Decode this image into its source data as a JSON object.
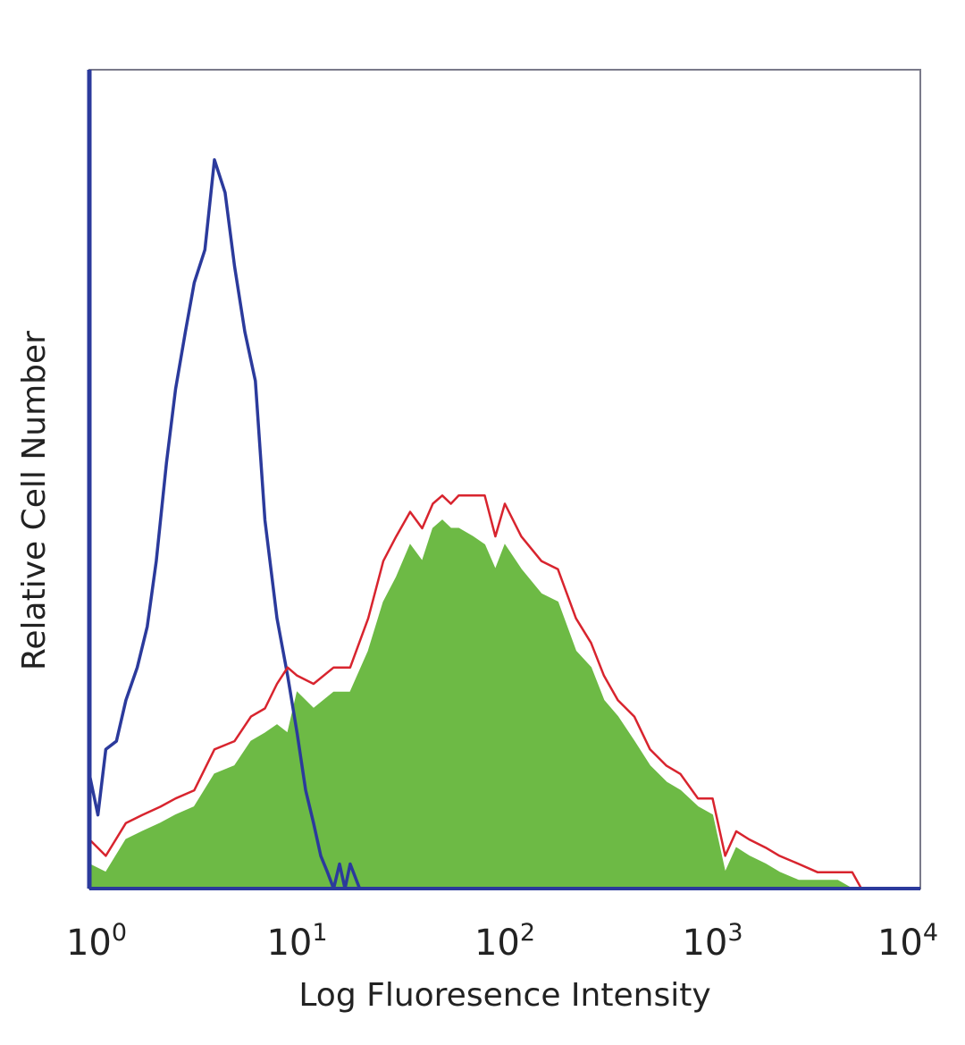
{
  "chart_data": {
    "type": "area",
    "title": "",
    "xlabel": "Log Fluoresence Intensity",
    "ylabel": "Relative Cell Number",
    "x_scale": "log",
    "xlim": [
      1,
      10000
    ],
    "ylim": [
      0,
      100
    ],
    "grid": false,
    "x_ticks": [
      {
        "value": 1,
        "base": "10",
        "exp": "0"
      },
      {
        "value": 10,
        "base": "10",
        "exp": "1"
      },
      {
        "value": 100,
        "base": "10",
        "exp": "2"
      },
      {
        "value": 1000,
        "base": "10",
        "exp": "3"
      },
      {
        "value": 10000,
        "base": "10",
        "exp": "4"
      }
    ],
    "series": [
      {
        "kind": "line",
        "color": "#2b3a9c",
        "x": [
          1.0,
          1.1,
          1.2,
          1.35,
          1.5,
          1.7,
          1.9,
          2.1,
          2.35,
          2.6,
          2.9,
          3.2,
          3.6,
          4.0,
          4.5,
          5.0,
          5.6,
          6.3,
          7.0,
          8.0,
          9.0,
          10.0,
          11.0,
          12.0,
          13.0,
          14.0,
          15.0,
          16.0,
          17.0,
          18.0,
          20.0
        ],
        "y": [
          14,
          9,
          17,
          18,
          23,
          27,
          32,
          40,
          52,
          61,
          68,
          74,
          78,
          89,
          85,
          76,
          68,
          62,
          45,
          33,
          26,
          19,
          12,
          8,
          4,
          2,
          0,
          3,
          0,
          3,
          0
        ]
      },
      {
        "kind": "line",
        "color": "#d8242e",
        "x": [
          1.0,
          1.2,
          1.5,
          1.8,
          2.2,
          2.6,
          3.2,
          4.0,
          5.0,
          6.0,
          7.0,
          8.0,
          9.0,
          10.0,
          12.0,
          15.0,
          18.0,
          22.0,
          26.0,
          30.0,
          35.0,
          40.0,
          45.0,
          50.0,
          55.0,
          60.0,
          70.0,
          80.0,
          90.0,
          100.0,
          120.0,
          150.0,
          180.0,
          220.0,
          260.0,
          300.0,
          350.0,
          420.0,
          500.0,
          600.0,
          700.0,
          850.0,
          1000.0,
          1150.0,
          1300.0,
          1500.0,
          1800.0,
          2100.0,
          2600.0,
          3200.0,
          4000.0,
          4700.0,
          5200.0
        ],
        "y": [
          6,
          4,
          8,
          9,
          10,
          11,
          12,
          17,
          18,
          21,
          22,
          25,
          27,
          26,
          25,
          27,
          27,
          33,
          40,
          43,
          46,
          44,
          47,
          48,
          47,
          48,
          48,
          48,
          43,
          47,
          43,
          40,
          39,
          33,
          30,
          26,
          23,
          21,
          17,
          15,
          14,
          11,
          11,
          4,
          7,
          6,
          5,
          4,
          3,
          2,
          2,
          2,
          0
        ]
      },
      {
        "kind": "filled",
        "color": "#6dba45",
        "x": [
          1.0,
          1.2,
          1.5,
          1.8,
          2.2,
          2.6,
          3.2,
          4.0,
          5.0,
          6.0,
          7.0,
          8.0,
          9.0,
          10.0,
          12.0,
          15.0,
          18.0,
          22.0,
          26.0,
          30.0,
          35.0,
          40.0,
          45.0,
          50.0,
          55.0,
          60.0,
          70.0,
          80.0,
          90.0,
          100.0,
          120.0,
          150.0,
          180.0,
          220.0,
          260.0,
          300.0,
          350.0,
          420.0,
          500.0,
          600.0,
          700.0,
          850.0,
          1000.0,
          1150.0,
          1300.0,
          1500.0,
          1800.0,
          2100.0,
          2600.0,
          3200.0,
          4000.0,
          4700.0,
          5200.0
        ],
        "y": [
          3,
          2,
          6,
          7,
          8,
          9,
          10,
          14,
          15,
          18,
          19,
          20,
          19,
          24,
          22,
          24,
          24,
          29,
          35,
          38,
          42,
          40,
          44,
          45,
          44,
          44,
          43,
          42,
          39,
          42,
          39,
          36,
          35,
          29,
          27,
          23,
          21,
          18,
          15,
          13,
          12,
          10,
          9,
          2,
          5,
          4,
          3,
          2,
          1,
          1,
          1,
          0,
          0
        ]
      }
    ]
  }
}
